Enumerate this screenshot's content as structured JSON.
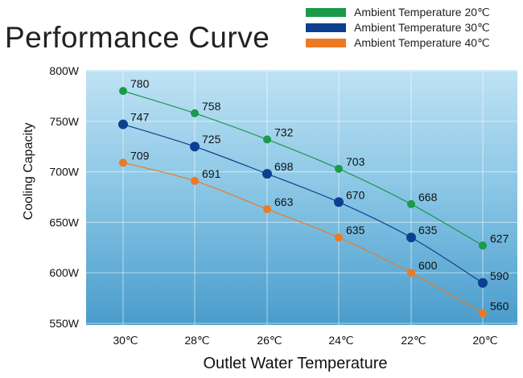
{
  "chart_data": {
    "type": "line",
    "title": "Performance Curve",
    "xlabel": "Outlet Water Temperature",
    "ylabel": "Cooling Capacity",
    "categories": [
      "30℃",
      "28℃",
      "26℃",
      "24℃",
      "22℃",
      "20℃"
    ],
    "y_ticks": [
      "800W",
      "750W",
      "700W",
      "650W",
      "600W",
      "550W"
    ],
    "ylim": [
      550,
      800
    ],
    "y_unit": "W",
    "grid": true,
    "legend_position": "top-right",
    "series": [
      {
        "name": "Ambient Temperature 20℃",
        "color": "#1a9a4a",
        "values": [
          780,
          758,
          732,
          703,
          668,
          627
        ]
      },
      {
        "name": "Ambient Temperature 30℃",
        "color": "#0c3f8f",
        "values": [
          747,
          725,
          698,
          670,
          635,
          590
        ]
      },
      {
        "name": "Ambient Temperature 40℃",
        "color": "#ec7a22",
        "values": [
          709,
          691,
          663,
          635,
          600,
          560
        ]
      }
    ]
  }
}
